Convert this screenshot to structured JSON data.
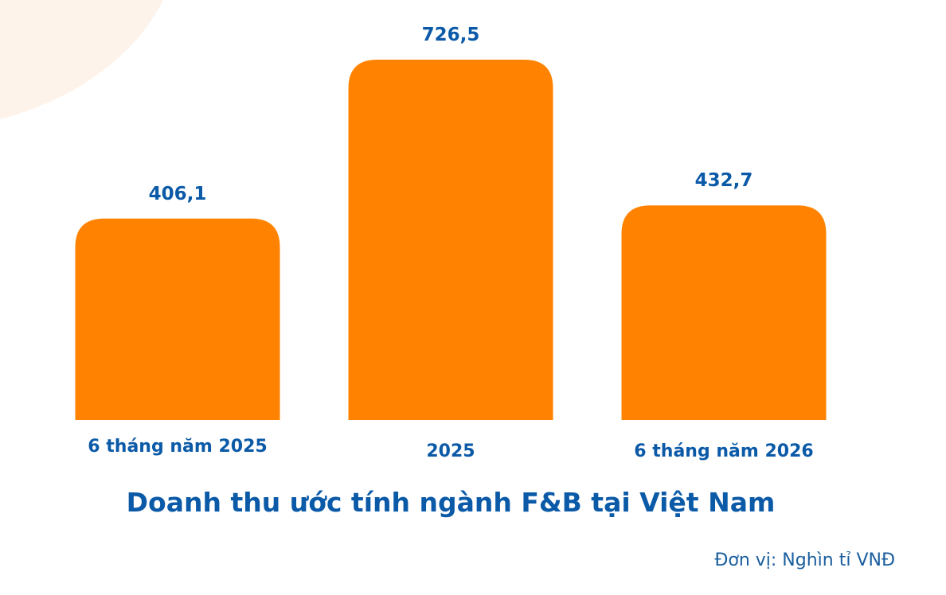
{
  "chart_data": {
    "type": "bar",
    "title": "Doanh thu ước tính ngành F&B tại Việt Nam",
    "unit_note": "Đơn vị: Nghìn tỉ VNĐ",
    "categories": [
      "6 tháng năm 2025",
      "2025",
      "6 tháng năm 2026"
    ],
    "values": [
      406.1,
      726.5,
      432.7
    ],
    "value_labels": [
      "406,1",
      "726,5",
      "432,7"
    ],
    "xlabel": "",
    "ylabel": "",
    "ylim": [
      0,
      726.5
    ],
    "grid": false,
    "legend": "none"
  },
  "colors": {
    "bar": "#FF8300",
    "text": "#0B5AA8",
    "unit_text": "#1A5E9E",
    "decoration": "#FDF3EA"
  }
}
